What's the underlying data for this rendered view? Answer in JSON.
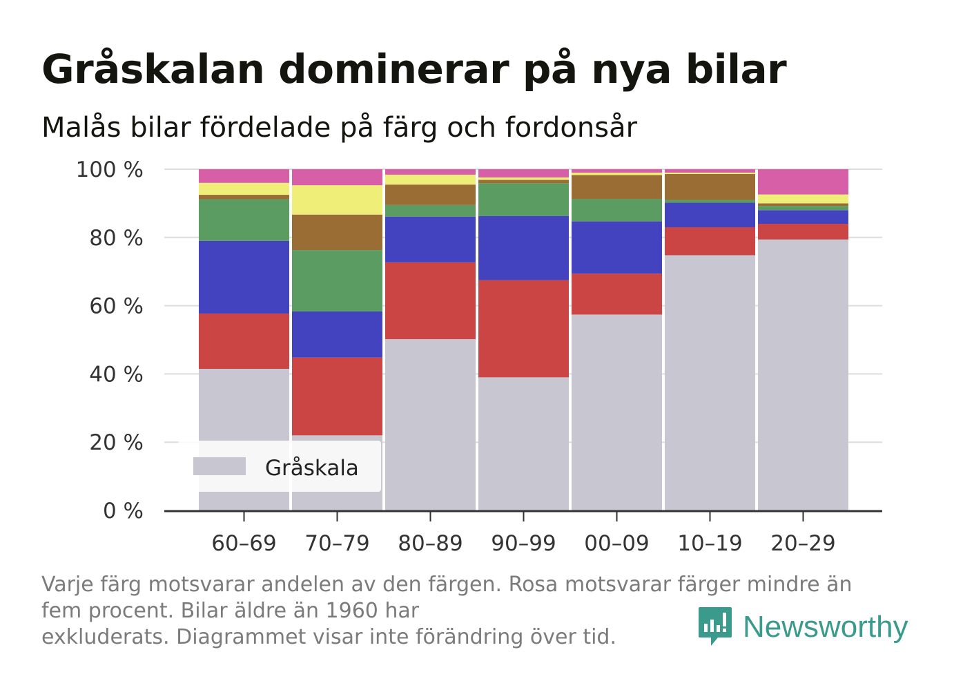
{
  "chart_data": {
    "type": "bar",
    "stacked": true,
    "title": "Gråskalan dominerar på nya bilar",
    "subtitle": "Malås bilar fördelade på färg och fordonsår",
    "categories": [
      "60–69",
      "70–79",
      "80–89",
      "90–99",
      "00–09",
      "10–19",
      "20–29"
    ],
    "ylim": [
      0,
      100
    ],
    "yticks": [
      0,
      20,
      40,
      60,
      80,
      100
    ],
    "ytick_labels": [
      "0 %",
      "20 %",
      "40 %",
      "60 %",
      "80 %",
      "100 %"
    ],
    "grid": true,
    "legend": {
      "position": "bottom-left",
      "label": "Gråskala"
    },
    "series": [
      {
        "name": "Gråskala",
        "color": "#c8c6d1",
        "values": [
          41.5,
          22,
          50.2,
          39,
          57.4,
          74.8,
          79.4
        ]
      },
      {
        "color": "#cc4545",
        "values": [
          16.2,
          22.8,
          22.5,
          28.5,
          12,
          8.2,
          4.6
        ]
      },
      {
        "color": "#4343bf",
        "values": [
          21.3,
          13.5,
          13.4,
          18.8,
          15.3,
          7.2,
          4
        ]
      },
      {
        "color": "#5a9c62",
        "values": [
          12.2,
          18,
          3.4,
          9.6,
          6.6,
          0.8,
          1.2
        ]
      },
      {
        "color": "#9a6d35",
        "values": [
          1.3,
          10.4,
          6,
          1,
          7,
          7.6,
          0.8
        ]
      },
      {
        "color": "#eeee78",
        "values": [
          3.5,
          8.6,
          2.9,
          0.7,
          0.7,
          0.4,
          2.6
        ]
      },
      {
        "color": "#d65fa8",
        "values": [
          4,
          4.7,
          1.6,
          2.4,
          1,
          1,
          7.4
        ]
      }
    ]
  },
  "footnote": {
    "line1": "Varje färg motsvarar andelen av den färgen. Rosa motsvarar färger mindre än",
    "line2": "fem procent. Bilar äldre än 1960 har",
    "line3": "exkluderats. Diagrammet visar inte förändring över tid."
  },
  "brand": {
    "name": "Newsworthy",
    "color": "#3a9a8c",
    "icon": "newsworthy-logo-icon"
  }
}
